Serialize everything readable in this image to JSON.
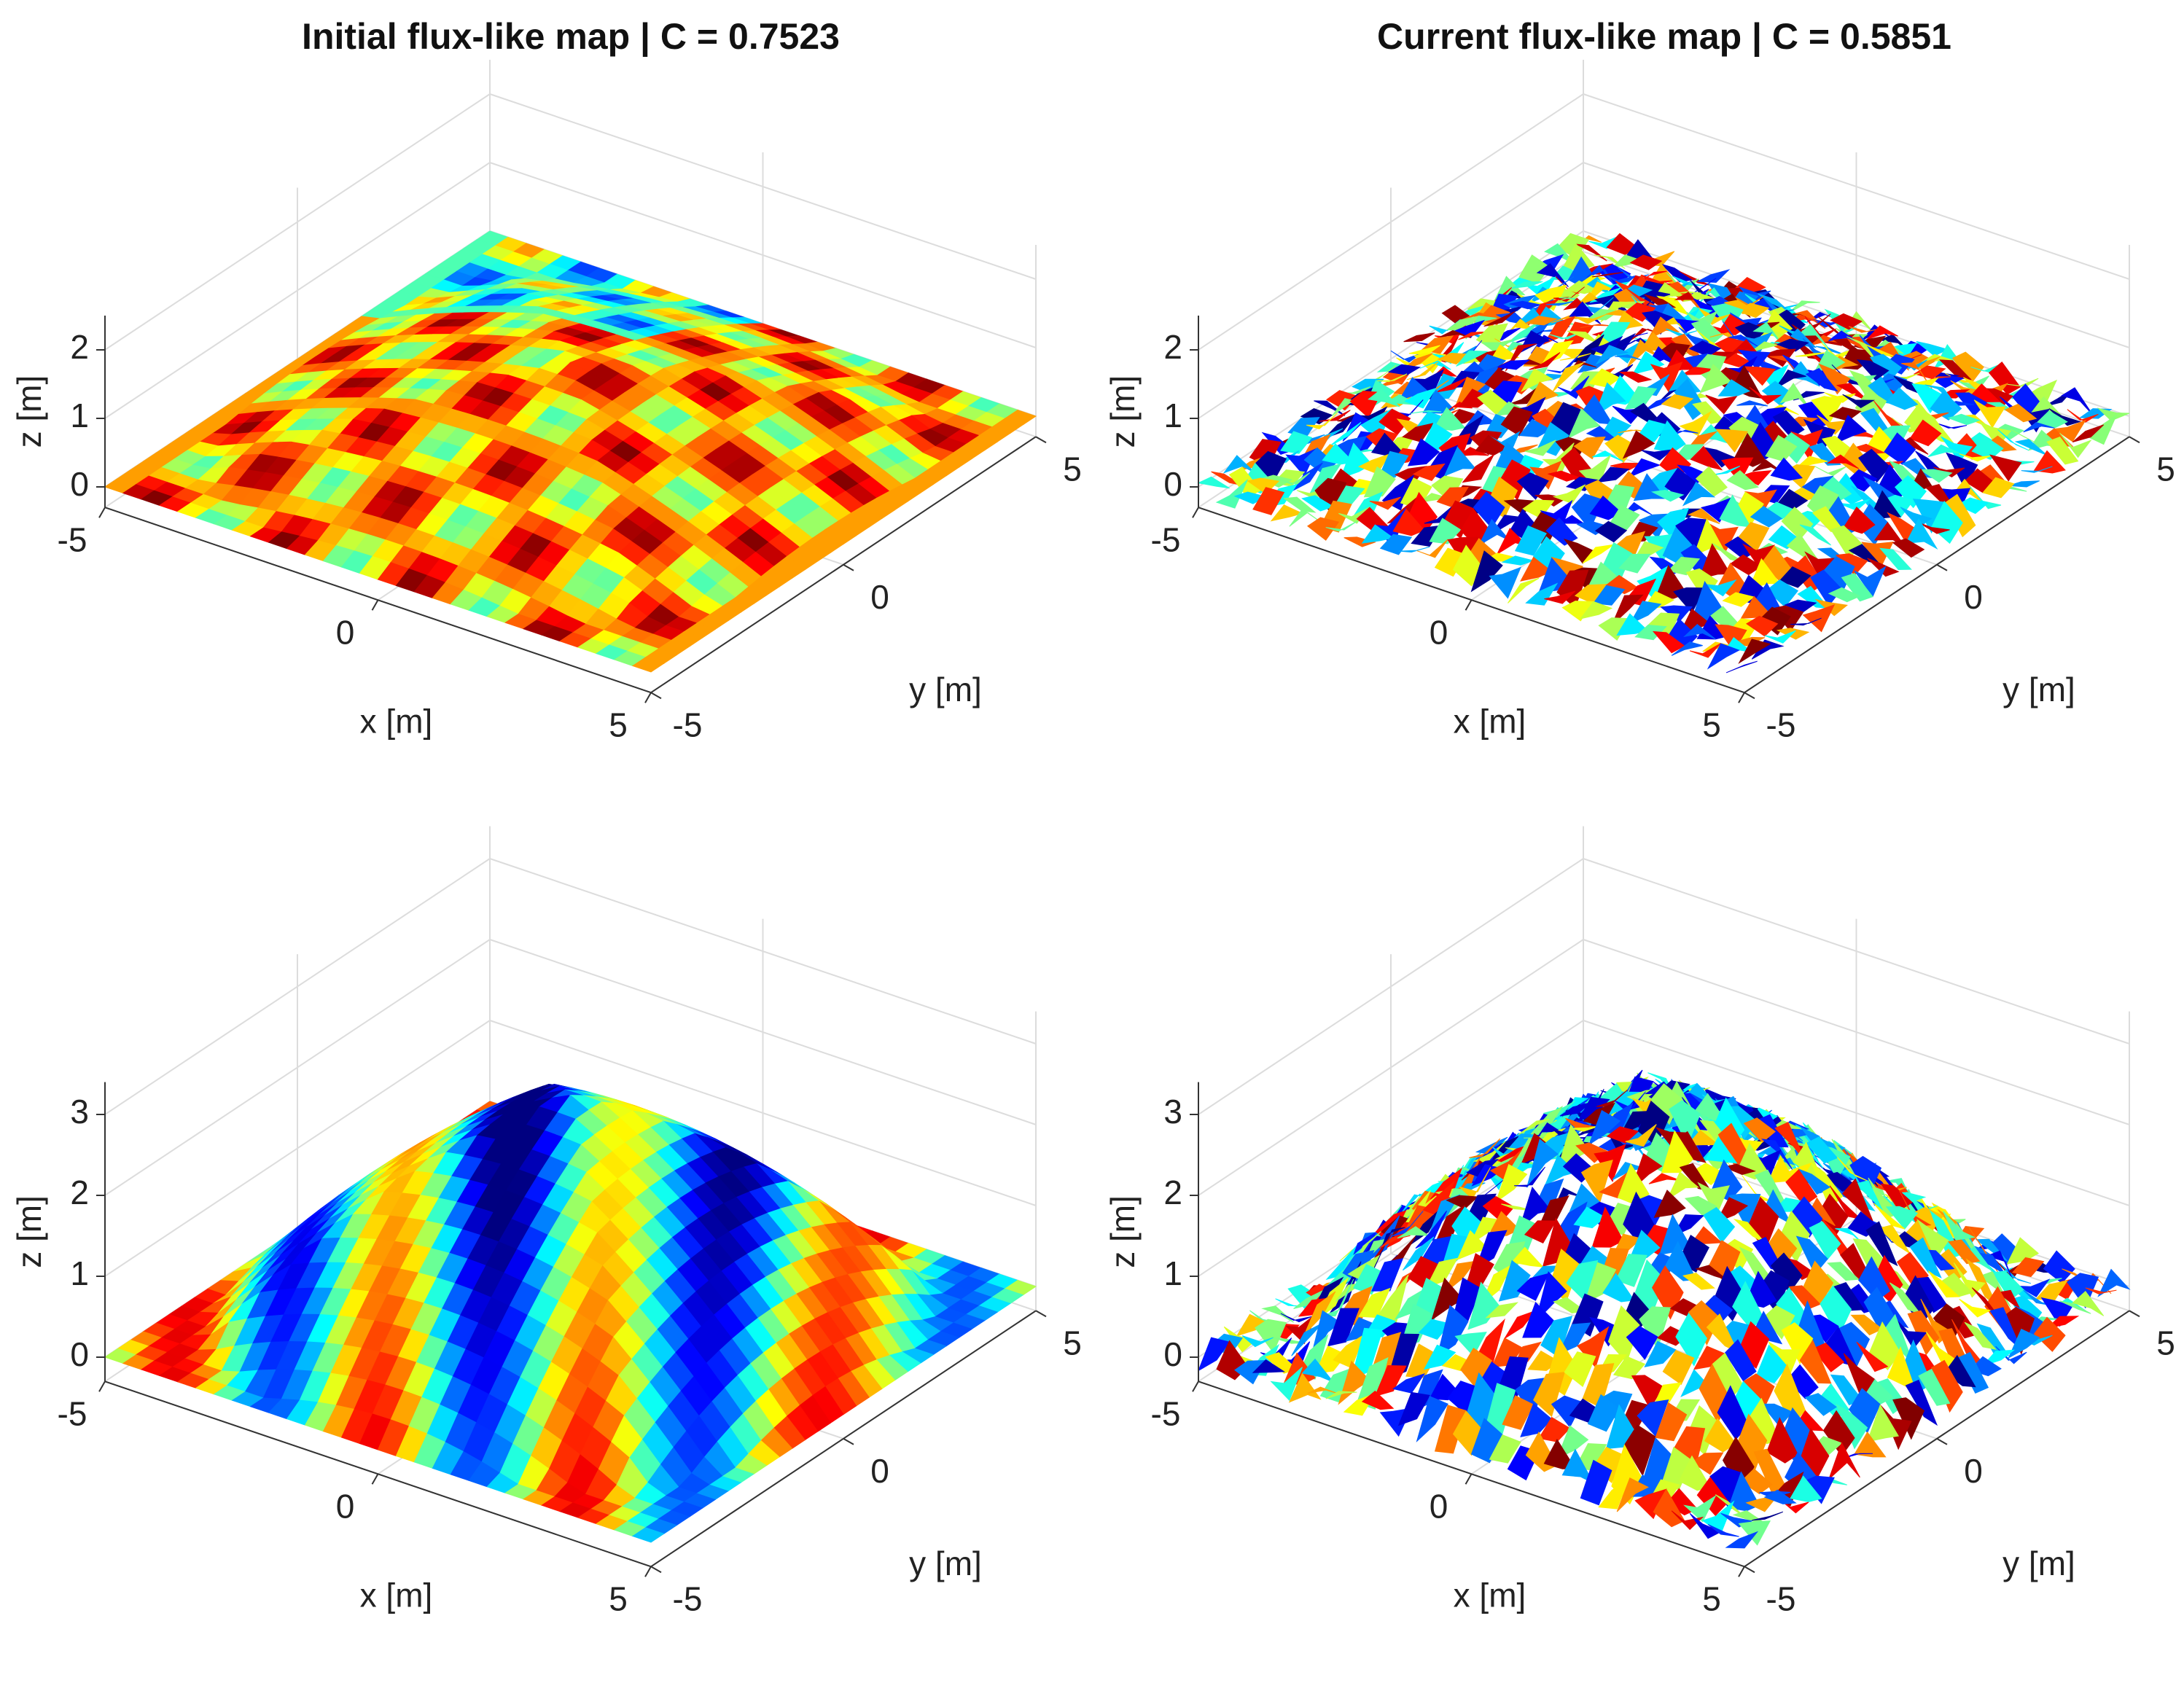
{
  "chart_data": [
    {
      "type": "surface",
      "title": "Initial flux-like map   |   C = 0.7523",
      "xlabel": "x [m]",
      "ylabel": "y [m]",
      "zlabel": "z [m]",
      "xlim": [
        -5,
        5
      ],
      "ylim": [
        -5,
        5
      ],
      "zlim": [
        -0.3,
        2.5
      ],
      "xticks": [
        -5,
        0,
        5
      ],
      "yticks": [
        -5,
        0,
        5
      ],
      "zticks": [
        0,
        1,
        2
      ],
      "grid": true
    },
    {
      "type": "surface",
      "title": "Current flux-like map   |   C = 0.5851",
      "xlabel": "x [m]",
      "ylabel": "y [m]",
      "zlabel": "z [m]",
      "xlim": [
        -5,
        5
      ],
      "ylim": [
        -5,
        5
      ],
      "zlim": [
        -0.3,
        2.5
      ],
      "xticks": [
        -5,
        0,
        5
      ],
      "yticks": [
        -5,
        0,
        5
      ],
      "zticks": [
        0,
        1,
        2
      ],
      "grid": true
    },
    {
      "type": "surface",
      "xlabel": "x [m]",
      "ylabel": "y [m]",
      "zlabel": "z [m]",
      "xlim": [
        -5,
        5
      ],
      "ylim": [
        -5,
        5
      ],
      "zlim": [
        -0.3,
        3.4
      ],
      "xticks": [
        -5,
        0,
        5
      ],
      "yticks": [
        -5,
        0,
        5
      ],
      "zticks": [
        0,
        1,
        2,
        3
      ],
      "grid": true
    },
    {
      "type": "surface",
      "xlabel": "x [m]",
      "ylabel": "y [m]",
      "zlabel": "z [m]",
      "xlim": [
        -5,
        5
      ],
      "ylim": [
        -5,
        5
      ],
      "zlim": [
        -0.3,
        3.4
      ],
      "xticks": [
        -5,
        0,
        5
      ],
      "yticks": [
        -5,
        0,
        5
      ],
      "zticks": [
        0,
        1,
        2,
        3
      ],
      "grid": true
    }
  ]
}
